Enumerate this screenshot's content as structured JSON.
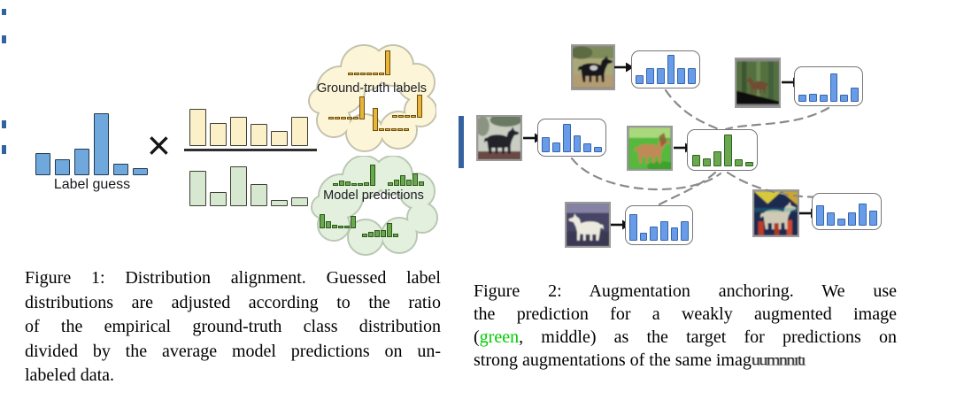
{
  "figure1": {
    "label_guess": {
      "label": "Label guess",
      "values": [
        25,
        18,
        30,
        70,
        13,
        8
      ]
    },
    "times": "×",
    "numerator": {
      "values": [
        42,
        26,
        33,
        25,
        17,
        33
      ]
    },
    "denominator": {
      "values": [
        40,
        16,
        45,
        25,
        7,
        10
      ]
    },
    "ground_truth_cloud": {
      "label": "Ground-truth labels",
      "minis": {
        "m1": [
          3,
          3,
          3,
          3,
          3,
          3,
          28
        ],
        "m2": [
          3,
          3,
          3,
          3,
          3,
          26
        ],
        "m3": [
          26,
          3,
          3,
          3,
          3,
          3
        ],
        "m4": [
          3,
          3,
          3,
          3,
          26
        ]
      }
    },
    "model_pred_cloud": {
      "label": "Model predictions",
      "minis": {
        "g1": [
          3,
          6,
          5,
          3,
          3,
          4,
          24
        ],
        "g2": [
          4,
          7,
          12,
          7,
          14,
          5
        ],
        "g3": [
          16,
          8,
          4,
          3,
          3,
          14
        ],
        "g4": [
          4,
          6,
          8,
          8,
          16,
          4
        ]
      }
    },
    "caption_lines": [
      "Figure 1: Distribution alignment. Guessed label",
      "distributions are adjusted according to the ratio",
      "of the empirical ground-truth class distribution",
      "divided by the average model predictions on un-",
      "labeled data."
    ]
  },
  "figure2": {
    "nodes": {
      "top_left": {
        "image": "horse-strong-aug-pasture",
        "values": [
          10,
          18,
          18,
          33,
          18,
          18
        ]
      },
      "top_right": {
        "image": "horse-strong-aug-forest",
        "values": [
          8,
          9,
          8,
          32,
          8,
          16
        ]
      },
      "mid_left": {
        "image": "horse-strong-aug-black",
        "values": [
          17,
          11,
          32,
          19,
          10,
          6
        ]
      },
      "center_weak": {
        "image": "horse-weak-aug",
        "values": [
          13,
          9,
          17,
          36,
          8,
          5
        ]
      },
      "bottom_left": {
        "image": "horse-strong-aug-white",
        "values": [
          30,
          9,
          16,
          22,
          15,
          22
        ]
      },
      "bottom_right": {
        "image": "horse-strong-aug-jitter",
        "values": [
          23,
          15,
          8,
          15,
          25,
          17
        ]
      }
    },
    "caption": {
      "line0": "Figure 2: Augmentation anchoring. We use",
      "line1": "the prediction for a weakly augmented image",
      "line2_pre": "(",
      "line2_green": "green",
      "line2_post": ", middle) as the target for predictions on",
      "line3_pre": "strong augmentations of the same imag",
      "line3_garbled": "uumnnıtı"
    }
  },
  "colors": {
    "figure1_blue": "#6fa8dc",
    "numerator_yellow": "#fcf0c8",
    "denominator_green": "#d7e8d1",
    "ground_truth_gold": "#e9b43a",
    "model_prediction_green": "#6aa84f",
    "figure2_blue": "#699ce8",
    "caption_green_word": "#00cc00",
    "dashed_line_gray": "#8a8a8a"
  }
}
